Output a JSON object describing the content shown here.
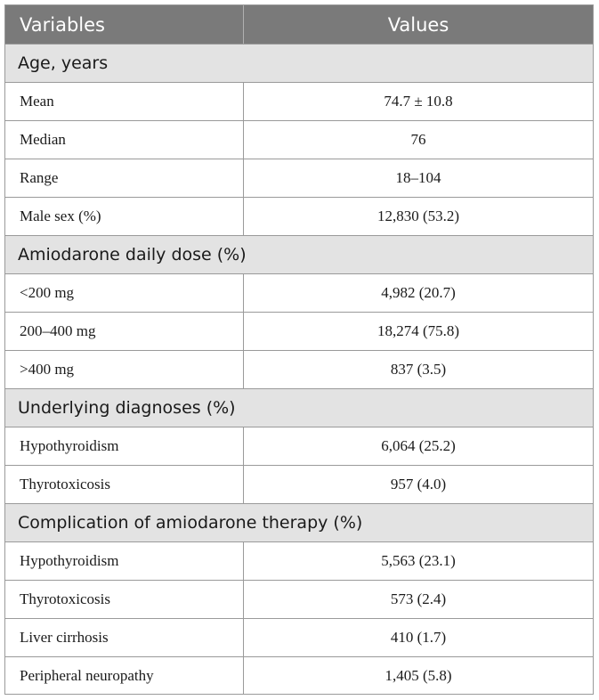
{
  "table": {
    "headers": {
      "variables": "Variables",
      "values": "Values"
    },
    "sections": [
      {
        "title": "Age, years",
        "rows": [
          {
            "variable": "Mean",
            "value": "74.7 ± 10.8"
          },
          {
            "variable": "Median",
            "value": "76"
          },
          {
            "variable": "Range",
            "value": "18–104"
          },
          {
            "variable": "Male sex (%)",
            "value": "12,830 (53.2)"
          }
        ]
      },
      {
        "title": "Amiodarone daily dose (%)",
        "rows": [
          {
            "variable": "<200 mg",
            "value": "4,982 (20.7)"
          },
          {
            "variable": "200–400 mg",
            "value": "18,274 (75.8)"
          },
          {
            "variable": ">400 mg",
            "value": "837 (3.5)"
          }
        ]
      },
      {
        "title": "Underlying diagnoses (%)",
        "rows": [
          {
            "variable": "Hypothyroidism",
            "value": "6,064 (25.2)"
          },
          {
            "variable": "Thyrotoxicosis",
            "value": "957 (4.0)"
          }
        ]
      },
      {
        "title": "Complication of amiodarone therapy (%)",
        "rows": [
          {
            "variable": "Hypothyroidism",
            "value": "5,563 (23.1)"
          },
          {
            "variable": "Thyrotoxicosis",
            "value": "573 (2.4)"
          },
          {
            "variable": "Liver cirrhosis",
            "value": "410 (1.7)"
          },
          {
            "variable": "Peripheral neuropathy",
            "value": "1,405 (5.8)"
          }
        ]
      }
    ]
  }
}
